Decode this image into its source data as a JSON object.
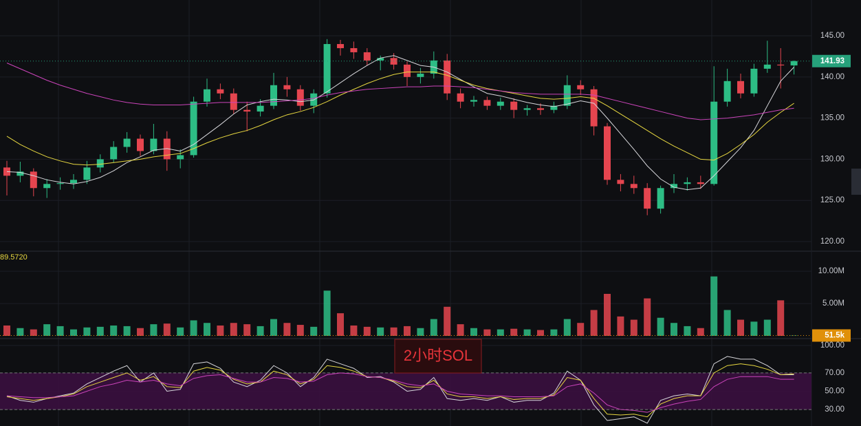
{
  "chart_data": [
    {
      "type": "candlestick",
      "open": [
        129.0,
        128.0,
        128.5,
        126.5,
        127.0,
        127.1,
        127.5,
        129.0,
        130.0,
        131.5,
        132.5,
        131.0,
        132.5,
        130.0,
        130.5,
        137.0,
        138.5,
        138.0,
        136.0,
        135.8,
        136.5,
        139.0,
        138.5,
        136.5,
        138.0,
        144.0,
        143.5,
        143.0,
        142.0,
        142.3,
        141.5,
        140.0,
        140.4,
        142.0,
        138.0,
        137.0,
        137.2,
        136.5,
        137.0,
        136.0,
        136.2,
        136.0,
        136.5,
        139.0,
        138.5,
        134.0,
        127.5,
        127.0,
        126.5,
        124.0,
        126.5,
        127.0,
        127.2,
        127.0,
        137.0,
        139.5,
        138.0,
        141.0,
        141.5,
        141.4
      ],
      "high": [
        129.8,
        129.7,
        128.9,
        127.6,
        127.8,
        128.2,
        129.8,
        130.6,
        132.2,
        133.3,
        133.0,
        134.3,
        133.4,
        131.2,
        137.6,
        139.8,
        139.2,
        138.6,
        137.0,
        137.3,
        140.5,
        140.0,
        139.0,
        138.5,
        144.6,
        144.5,
        144.3,
        143.5,
        142.6,
        142.9,
        141.9,
        141.1,
        143.1,
        142.8,
        138.6,
        137.7,
        137.6,
        137.5,
        137.4,
        136.6,
        136.8,
        137.0,
        140.2,
        139.6,
        138.9,
        134.4,
        128.2,
        128.0,
        127.1,
        126.8,
        128.2,
        127.8,
        128.0,
        141.3,
        141.0,
        140.4,
        141.6,
        144.4,
        143.5,
        142.0
      ],
      "low": [
        125.6,
        127.2,
        125.5,
        125.3,
        126.3,
        126.4,
        127.0,
        128.4,
        129.6,
        130.8,
        130.4,
        130.6,
        128.6,
        128.9,
        130.2,
        136.4,
        137.3,
        135.5,
        133.4,
        135.2,
        136.1,
        137.6,
        135.9,
        135.6,
        137.5,
        142.6,
        142.2,
        141.4,
        140.8,
        140.9,
        138.9,
        139.2,
        139.8,
        137.2,
        136.2,
        136.4,
        136.0,
        136.0,
        135.0,
        135.3,
        135.4,
        135.6,
        136.1,
        137.8,
        132.9,
        126.9,
        126.1,
        125.8,
        123.2,
        123.4,
        125.9,
        126.2,
        126.4,
        126.8,
        136.4,
        137.4,
        137.6,
        140.5,
        138.6,
        140.3
      ],
      "close": [
        128.0,
        128.5,
        126.5,
        127.0,
        127.1,
        127.5,
        129.0,
        130.0,
        131.5,
        132.5,
        131.0,
        132.5,
        130.0,
        130.5,
        137.0,
        138.5,
        138.0,
        136.0,
        135.8,
        136.5,
        139.0,
        138.5,
        136.5,
        138.0,
        144.0,
        143.5,
        143.0,
        142.0,
        142.3,
        141.5,
        140.0,
        140.4,
        142.0,
        138.0,
        137.0,
        137.2,
        136.5,
        137.0,
        136.0,
        136.2,
        136.0,
        136.5,
        139.0,
        138.5,
        134.0,
        127.5,
        127.0,
        126.5,
        124.0,
        126.5,
        127.0,
        127.2,
        127.0,
        137.0,
        139.5,
        138.0,
        141.0,
        141.5,
        141.4,
        141.93
      ],
      "up_color": "#2dbd85",
      "down_color": "#e5454f",
      "series": [
        {
          "color": "#d8d8dc",
          "values": [
            128.5,
            128.4,
            128.0,
            127.5,
            127.2,
            127.0,
            127.3,
            127.8,
            128.6,
            129.6,
            130.3,
            131.1,
            131.3,
            131.0,
            131.8,
            133.0,
            134.2,
            135.5,
            136.6,
            137.0,
            137.3,
            137.2,
            137.0,
            137.2,
            138.2,
            139.3,
            140.4,
            141.4,
            142.3,
            142.6,
            142.0,
            141.4,
            141.2,
            140.6,
            139.7,
            138.8,
            138.0,
            137.7,
            137.3,
            136.9,
            136.6,
            136.4,
            136.7,
            137.1,
            136.8,
            135.0,
            133.1,
            131.2,
            129.2,
            127.6,
            126.6,
            126.3,
            126.5,
            128.0,
            129.7,
            131.4,
            133.5,
            136.5,
            139.5,
            141.2
          ]
        },
        {
          "color": "#e8d840",
          "values": [
            132.8,
            131.8,
            131.0,
            130.3,
            129.8,
            129.4,
            129.3,
            129.4,
            129.6,
            129.8,
            130.0,
            130.3,
            130.5,
            130.7,
            131.3,
            132.0,
            132.6,
            133.1,
            133.5,
            134.1,
            134.8,
            135.4,
            135.8,
            136.3,
            137.0,
            137.8,
            138.5,
            139.2,
            139.8,
            140.3,
            140.6,
            140.6,
            140.6,
            140.2,
            139.6,
            139.0,
            138.6,
            138.3,
            138.0,
            137.7,
            137.4,
            137.3,
            137.4,
            137.6,
            137.4,
            136.5,
            135.5,
            134.5,
            133.5,
            132.5,
            131.6,
            130.8,
            130.0,
            129.9,
            130.7,
            131.8,
            133.0,
            134.5,
            135.7,
            136.8
          ]
        },
        {
          "color": "#cc44bb",
          "values": [
            141.7,
            141.0,
            140.3,
            139.6,
            139.0,
            138.5,
            138.0,
            137.6,
            137.2,
            136.9,
            136.7,
            136.6,
            136.6,
            136.6,
            136.7,
            136.8,
            136.9,
            136.9,
            136.9,
            136.9,
            137.0,
            137.1,
            137.2,
            137.4,
            137.8,
            138.1,
            138.3,
            138.5,
            138.6,
            138.7,
            138.8,
            138.8,
            138.9,
            138.9,
            138.8,
            138.7,
            138.5,
            138.3,
            138.1,
            138.0,
            137.9,
            137.9,
            137.9,
            137.9,
            137.8,
            137.4,
            137.0,
            136.6,
            136.2,
            135.8,
            135.4,
            135.0,
            134.8,
            134.9,
            135.0,
            135.2,
            135.4,
            135.7,
            136.0,
            136.2
          ]
        }
      ],
      "ylim": [
        118.83,
        149.35
      ],
      "yticks": [
        {
          "value": 120,
          "label": "120.00"
        },
        {
          "value": 125,
          "label": "125.00"
        },
        {
          "value": 130,
          "label": "130.00"
        },
        {
          "value": 135,
          "label": "135.00"
        },
        {
          "value": 140,
          "label": "140.00"
        },
        {
          "value": 145,
          "label": "145.00"
        }
      ],
      "last_value": {
        "value": 141.93,
        "label": "141.93"
      },
      "grid": true
    },
    {
      "type": "bar",
      "indicator_label": "89.5720",
      "values": [
        1600000,
        1200000,
        1000000,
        1800000,
        1500000,
        1000000,
        1300000,
        1400000,
        1600000,
        1500000,
        1200000,
        1800000,
        1900000,
        1300000,
        2400000,
        2000000,
        1600000,
        2000000,
        1800000,
        1500000,
        2600000,
        2000000,
        1700000,
        1400000,
        7000000,
        3500000,
        1600000,
        1400000,
        1300000,
        1300000,
        1500000,
        1200000,
        2600000,
        4500000,
        1800000,
        1200000,
        1000000,
        1000000,
        1100000,
        1000000,
        900000,
        1000000,
        2600000,
        2000000,
        4000000,
        6500000,
        3000000,
        2500000,
        5800000,
        2800000,
        2000000,
        1500000,
        1200000,
        9200000,
        4000000,
        2500000,
        2200000,
        2500000,
        5500000,
        51500
      ],
      "up_color": "#2dbd85",
      "down_color": "#e5454f",
      "ylim": [
        0,
        13000000
      ],
      "yticks": [
        {
          "value": 5000000,
          "label": "5.00M"
        },
        {
          "value": 10000000,
          "label": "10.00M"
        }
      ],
      "last_value": {
        "value": 51500,
        "label": "51.5k"
      },
      "grid": true
    },
    {
      "type": "line",
      "series": [
        {
          "color": "#d8d8dc",
          "values": [
            45,
            40,
            38,
            42,
            45,
            48,
            58,
            65,
            72,
            78,
            60,
            70,
            50,
            52,
            80,
            82,
            75,
            60,
            55,
            62,
            78,
            70,
            55,
            65,
            85,
            80,
            75,
            65,
            66,
            60,
            50,
            52,
            65,
            42,
            40,
            42,
            40,
            44,
            38,
            40,
            40,
            48,
            72,
            62,
            35,
            18,
            20,
            22,
            15,
            40,
            45,
            47,
            45,
            80,
            88,
            85,
            85,
            78,
            68,
            68
          ]
        },
        {
          "color": "#e8d840",
          "values": [
            44,
            42,
            40,
            42,
            44,
            47,
            55,
            60,
            65,
            70,
            62,
            66,
            55,
            54,
            72,
            76,
            73,
            63,
            58,
            60,
            72,
            68,
            58,
            63,
            78,
            76,
            72,
            66,
            65,
            61,
            55,
            54,
            62,
            47,
            44,
            44,
            42,
            44,
            41,
            42,
            42,
            46,
            65,
            62,
            42,
            25,
            24,
            25,
            22,
            36,
            42,
            45,
            45,
            70,
            78,
            80,
            78,
            74,
            68,
            69
          ]
        },
        {
          "color": "#cc44bb",
          "values": [
            45,
            44,
            43,
            43,
            44,
            45,
            50,
            55,
            58,
            62,
            60,
            62,
            58,
            56,
            64,
            67,
            68,
            64,
            60,
            60,
            65,
            64,
            60,
            61,
            68,
            70,
            69,
            66,
            65,
            62,
            58,
            56,
            58,
            50,
            47,
            46,
            45,
            45,
            44,
            44,
            44,
            45,
            55,
            58,
            48,
            35,
            30,
            29,
            27,
            32,
            36,
            39,
            41,
            55,
            63,
            66,
            66,
            66,
            63,
            63
          ]
        }
      ],
      "band": [
        30,
        70
      ],
      "ylim": [
        12,
        107.5
      ],
      "yticks": [
        {
          "value": 30,
          "label": "30.00"
        },
        {
          "value": 50,
          "label": "50.00"
        },
        {
          "value": 70,
          "label": "70.00"
        },
        {
          "value": 100,
          "label": "100.00"
        }
      ],
      "grid": true
    }
  ],
  "annotation": "2小时SOL"
}
